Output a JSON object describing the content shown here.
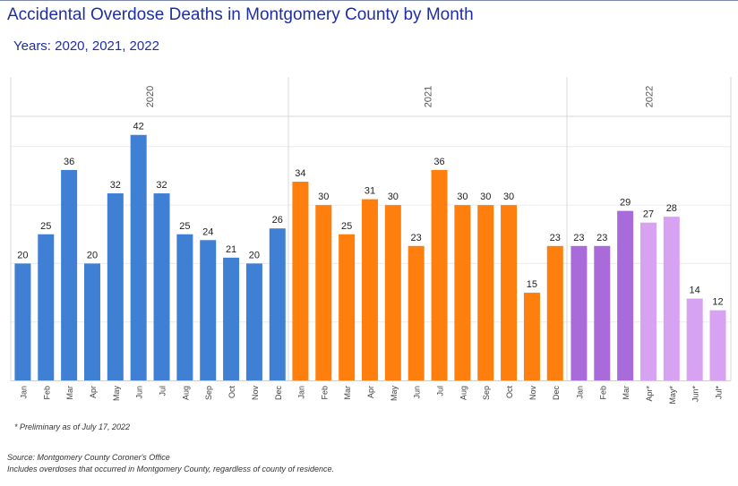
{
  "title": "Accidental Overdose Deaths in Montgomery County by Month",
  "subtitle": "Years: 2020, 2021, 2022",
  "footnote": "* Preliminary as of July 17, 2022",
  "source": "Source: Montgomery County Coroner's Office",
  "note": "Includes overdoses that occurred in Montgomery County, regardless of county of residence.",
  "colors": {
    "y2020": "#3f7fd4",
    "y2021": "#ff7f0e",
    "y2022": "#a86bd9",
    "y2022_prelim": "#d7a2f2"
  },
  "chart_data": {
    "type": "bar",
    "ylim": [
      0,
      45
    ],
    "grid": true,
    "series": [
      {
        "name": "2020",
        "categories": [
          "Jan",
          "Feb",
          "Mar",
          "Apr",
          "May",
          "Jun",
          "Jul",
          "Aug",
          "Sep",
          "Oct",
          "Nov",
          "Dec"
        ],
        "values": [
          20,
          25,
          36,
          20,
          32,
          42,
          32,
          25,
          24,
          21,
          20,
          26
        ],
        "preliminary": [
          false,
          false,
          false,
          false,
          false,
          false,
          false,
          false,
          false,
          false,
          false,
          false
        ]
      },
      {
        "name": "2021",
        "categories": [
          "Jan",
          "Feb",
          "Mar",
          "Apr",
          "May",
          "Jun",
          "Jul",
          "Aug",
          "Sep",
          "Oct",
          "Nov",
          "Dec"
        ],
        "values": [
          34,
          30,
          25,
          31,
          30,
          23,
          36,
          30,
          30,
          30,
          15,
          23
        ],
        "preliminary": [
          false,
          false,
          false,
          false,
          false,
          false,
          false,
          false,
          false,
          false,
          false,
          false
        ]
      },
      {
        "name": "2022",
        "categories": [
          "Jan",
          "Feb",
          "Mar",
          "Apr*",
          "May*",
          "Jun*",
          "Jul*"
        ],
        "values": [
          23,
          23,
          29,
          27,
          28,
          14,
          12
        ],
        "preliminary": [
          false,
          false,
          false,
          true,
          true,
          true,
          true
        ]
      }
    ]
  }
}
